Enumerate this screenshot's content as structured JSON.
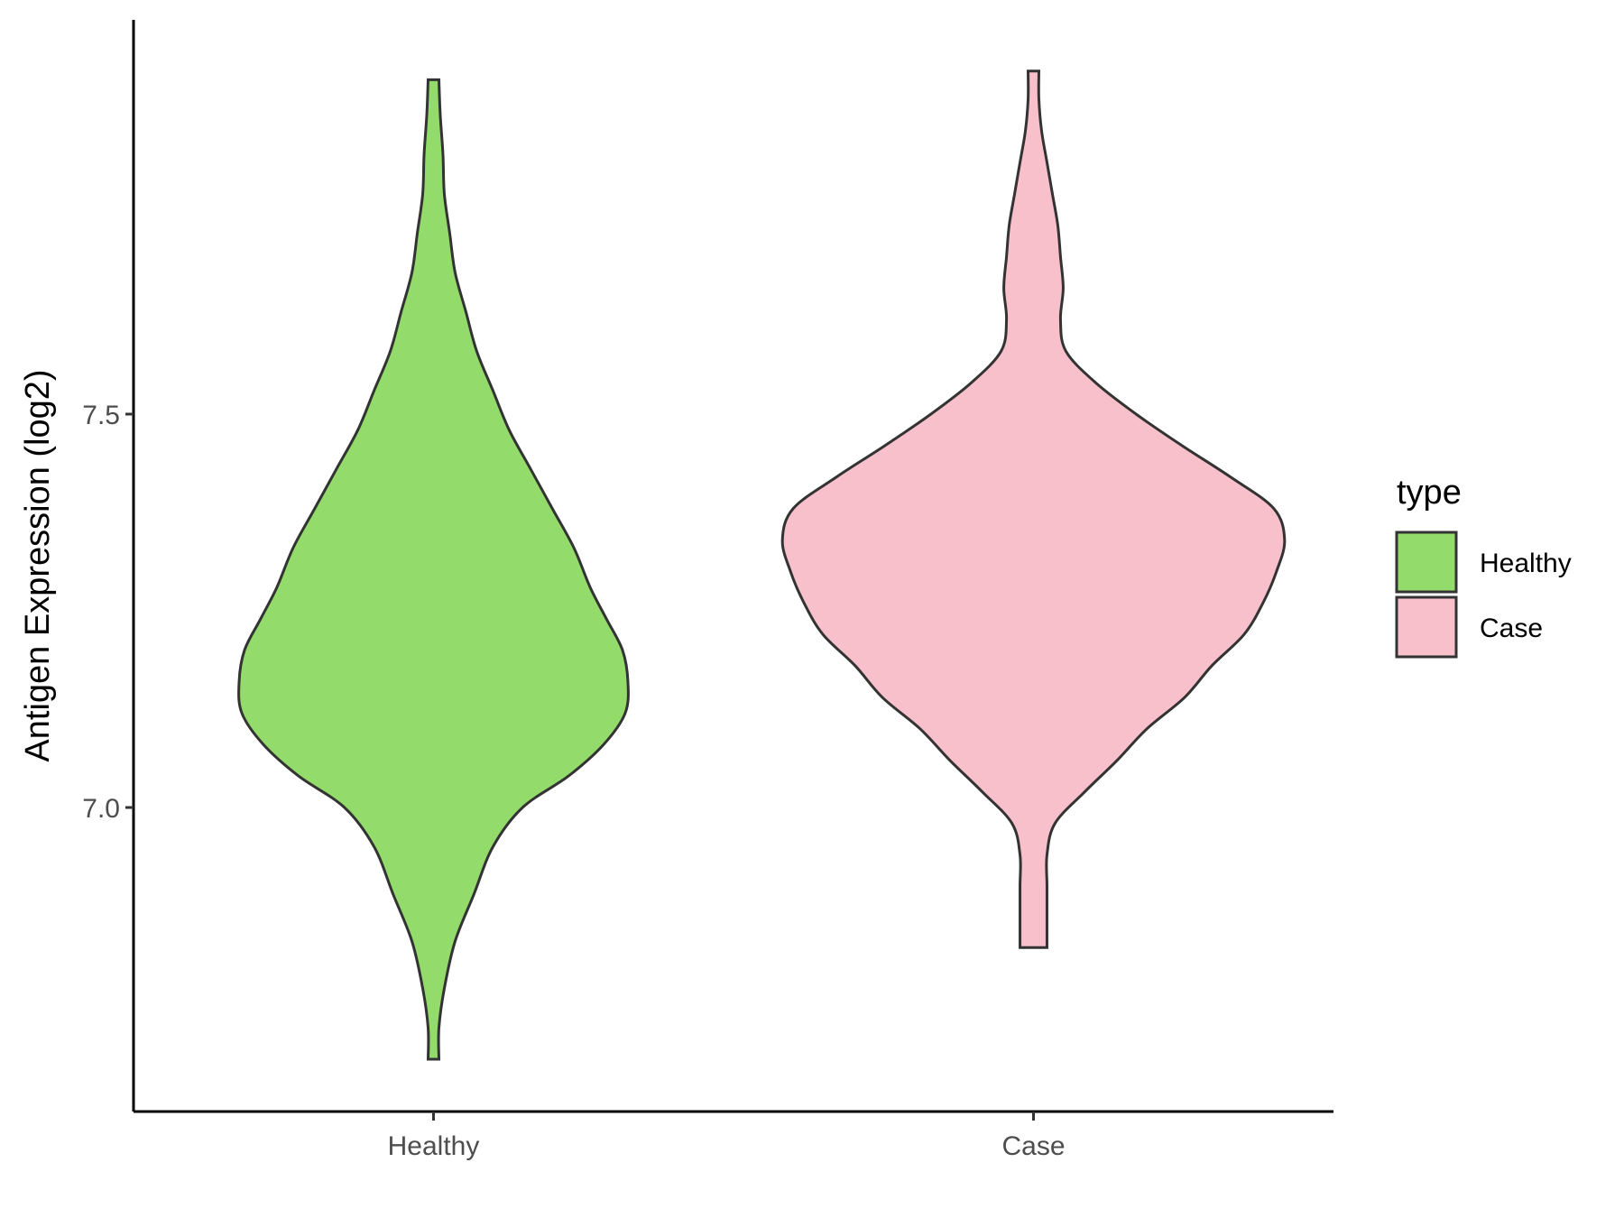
{
  "chart_data": {
    "type": "violin",
    "title": "",
    "xlabel": "",
    "ylabel": "Antigen Expression (log2)",
    "categories": [
      "Healthy",
      "Case"
    ],
    "y_ticks": [
      7.0,
      7.5
    ],
    "y_tick_labels": [
      "7.0",
      "7.5"
    ],
    "ylim": [
      6.62,
      8.0
    ],
    "grid": false,
    "legend": {
      "title": "type",
      "placement": "right",
      "entries": [
        {
          "label": "Healthy",
          "color": "#93DC6B"
        },
        {
          "label": "Case",
          "color": "#F8C0CB"
        }
      ]
    },
    "series": [
      {
        "category": "Healthy",
        "color": "#93DC6B",
        "min": 6.68,
        "max": 7.925,
        "density_profile": [
          [
            6.68,
            0.02
          ],
          [
            6.72,
            0.02
          ],
          [
            6.77,
            0.04
          ],
          [
            6.83,
            0.08
          ],
          [
            6.89,
            0.15
          ],
          [
            6.95,
            0.22
          ],
          [
            7.0,
            0.33
          ],
          [
            7.04,
            0.5
          ],
          [
            7.08,
            0.63
          ],
          [
            7.12,
            0.71
          ],
          [
            7.16,
            0.72
          ],
          [
            7.2,
            0.7
          ],
          [
            7.24,
            0.64
          ],
          [
            7.28,
            0.58
          ],
          [
            7.33,
            0.52
          ],
          [
            7.38,
            0.44
          ],
          [
            7.43,
            0.36
          ],
          [
            7.48,
            0.28
          ],
          [
            7.53,
            0.22
          ],
          [
            7.58,
            0.16
          ],
          [
            7.63,
            0.12
          ],
          [
            7.68,
            0.08
          ],
          [
            7.73,
            0.06
          ],
          [
            7.78,
            0.04
          ],
          [
            7.83,
            0.035
          ],
          [
            7.88,
            0.025
          ],
          [
            7.925,
            0.02
          ]
        ]
      },
      {
        "category": "Case",
        "color": "#F8C0CB",
        "min": 6.822,
        "max": 7.936,
        "density_profile": [
          [
            6.822,
            0.05
          ],
          [
            6.86,
            0.05
          ],
          [
            6.9,
            0.05
          ],
          [
            6.94,
            0.05
          ],
          [
            6.98,
            0.08
          ],
          [
            7.02,
            0.19
          ],
          [
            7.06,
            0.31
          ],
          [
            7.1,
            0.42
          ],
          [
            7.14,
            0.56
          ],
          [
            7.18,
            0.66
          ],
          [
            7.22,
            0.78
          ],
          [
            7.26,
            0.85
          ],
          [
            7.3,
            0.9
          ],
          [
            7.34,
            0.93
          ],
          [
            7.38,
            0.89
          ],
          [
            7.42,
            0.73
          ],
          [
            7.46,
            0.55
          ],
          [
            7.5,
            0.38
          ],
          [
            7.54,
            0.23
          ],
          [
            7.58,
            0.12
          ],
          [
            7.62,
            0.1
          ],
          [
            7.66,
            0.11
          ],
          [
            7.7,
            0.1
          ],
          [
            7.74,
            0.09
          ],
          [
            7.78,
            0.07
          ],
          [
            7.82,
            0.05
          ],
          [
            7.86,
            0.03
          ],
          [
            7.9,
            0.02
          ],
          [
            7.936,
            0.02
          ]
        ]
      }
    ]
  }
}
